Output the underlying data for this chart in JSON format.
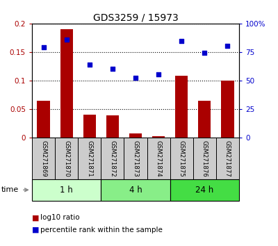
{
  "title": "GDS3259 / 15973",
  "samples": [
    "GSM271869",
    "GSM271870",
    "GSM271871",
    "GSM271872",
    "GSM271873",
    "GSM271874",
    "GSM271875",
    "GSM271876",
    "GSM271877"
  ],
  "log10_ratio": [
    0.065,
    0.19,
    0.04,
    0.039,
    0.007,
    0.003,
    0.108,
    0.065,
    0.1
  ],
  "percentile_rank_left": [
    0.158,
    0.172,
    0.128,
    0.12,
    0.105,
    0.111,
    0.169,
    0.149,
    0.161
  ],
  "bar_color": "#aa0000",
  "dot_color": "#0000cc",
  "bg_color": "#ffffff",
  "ylim_left": [
    0,
    0.2
  ],
  "ylim_right": [
    0,
    100
  ],
  "yticks_left": [
    0,
    0.05,
    0.1,
    0.15,
    0.2
  ],
  "yticks_right": [
    0,
    25,
    50,
    75,
    100
  ],
  "ytick_labels_left": [
    "0",
    "0.05",
    "0.1",
    "0.15",
    "0.2"
  ],
  "ytick_labels_right": [
    "0",
    "25",
    "50",
    "75",
    "100%"
  ],
  "groups": [
    {
      "label": "1 h",
      "start": 0,
      "end": 3,
      "color": "#ccffcc"
    },
    {
      "label": "4 h",
      "start": 3,
      "end": 6,
      "color": "#88ee88"
    },
    {
      "label": "24 h",
      "start": 6,
      "end": 9,
      "color": "#44dd44"
    }
  ],
  "time_label": "time",
  "legend_bar_label": "log10 ratio",
  "legend_dot_label": "percentile rank within the sample"
}
